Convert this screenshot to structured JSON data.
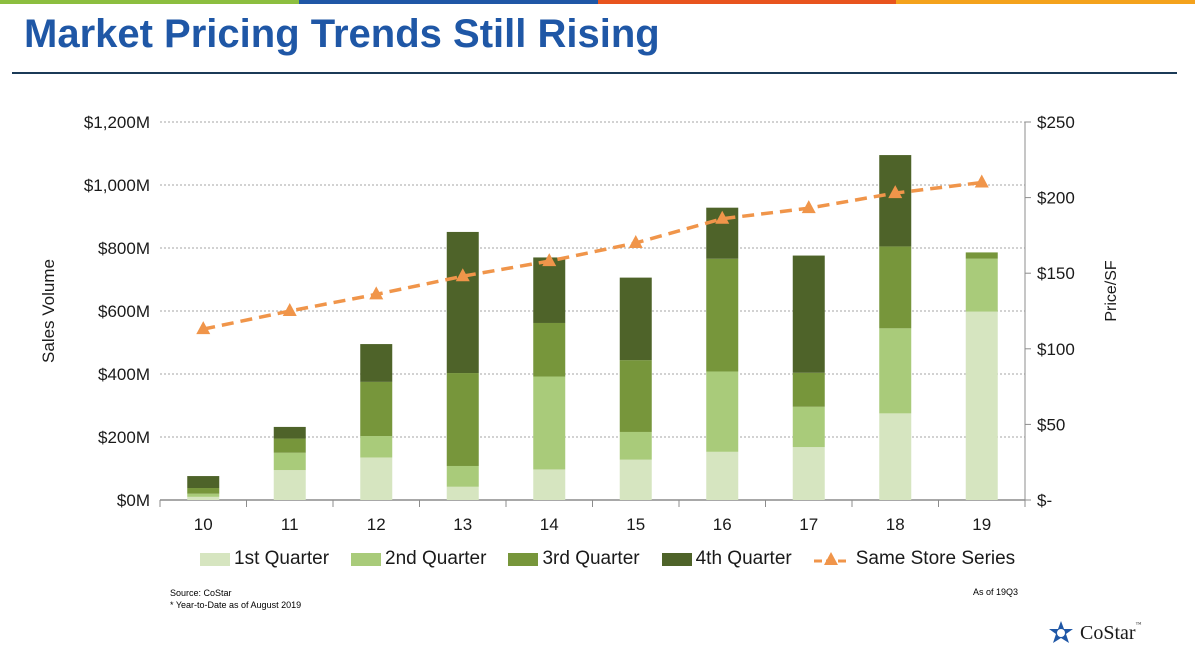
{
  "slide": {
    "title": "Market Pricing Trends Still Rising",
    "source": "Source: CoStar",
    "footnote": "* Year-to-Date as of August 2019",
    "as_of": "As of 19Q3",
    "logo_text": "CoStar",
    "logo_tm": "™",
    "topbar_colors": [
      "#8cbe3f",
      "#1f57a6",
      "#e8541e",
      "#f4a21c"
    ]
  },
  "colors": {
    "q1": "#d6e5c0",
    "q2": "#a9cb7a",
    "q3": "#77963b",
    "q4": "#4e6329",
    "line": "#f0954a",
    "title": "#1f57a6",
    "grid": "#a6a6a6"
  },
  "chart_data": {
    "type": "bar",
    "stacked": true,
    "categories": [
      "10",
      "11",
      "12",
      "13",
      "14",
      "15",
      "16",
      "17",
      "18",
      "19"
    ],
    "series": [
      {
        "name": "1st Quarter",
        "values": [
          10,
          95,
          135,
          42,
          97,
          128,
          153,
          168,
          275,
          598
        ]
      },
      {
        "name": "2nd Quarter",
        "values": [
          10,
          55,
          68,
          66,
          295,
          88,
          255,
          128,
          270,
          168
        ]
      },
      {
        "name": "3rd Quarter",
        "values": [
          18,
          45,
          172,
          295,
          170,
          228,
          358,
          108,
          260,
          20
        ]
      },
      {
        "name": "4th Quarter",
        "values": [
          38,
          37,
          120,
          448,
          208,
          262,
          162,
          372,
          290,
          0
        ]
      }
    ],
    "line_series": {
      "name": "Same Store Series",
      "axis": "right",
      "values": [
        113,
        125,
        136,
        148,
        158,
        170,
        186,
        193,
        203,
        210
      ]
    },
    "ylabel": "Sales Volume",
    "y2label": "Price/SF",
    "ylim": [
      0,
      1200
    ],
    "y2lim": [
      0,
      250
    ],
    "yticks": [
      "$0M",
      "$200M",
      "$400M",
      "$600M",
      "$800M",
      "$1,000M",
      "$1,200M"
    ],
    "y2ticks": [
      "$-",
      "$50",
      "$100",
      "$150",
      "$200",
      "$250"
    ],
    "grid": true,
    "legend_position": "bottom"
  }
}
